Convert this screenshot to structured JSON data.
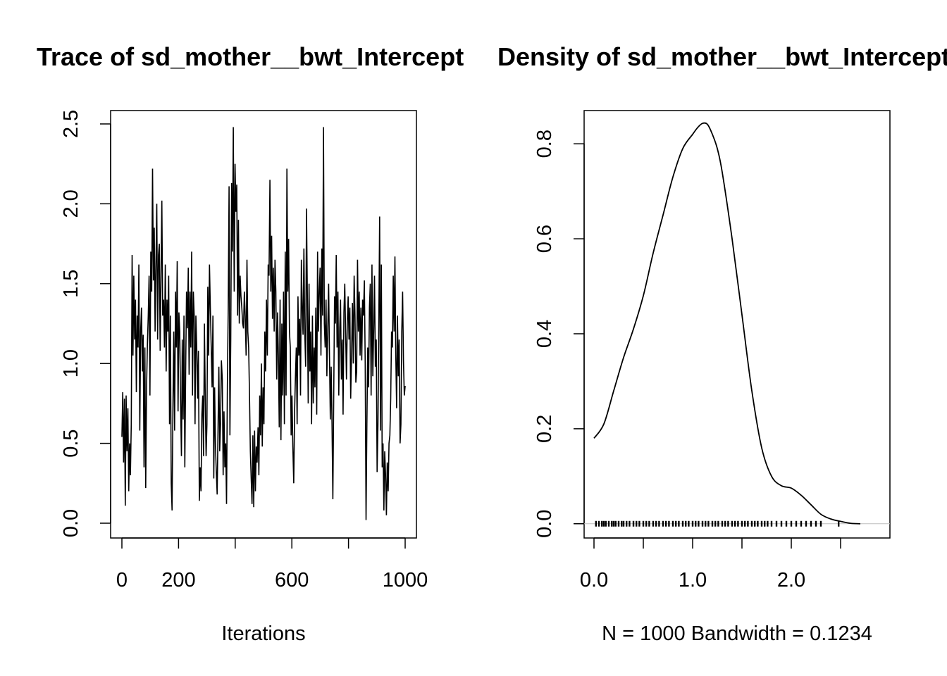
{
  "chart_data": [
    {
      "type": "line",
      "title": "Trace of sd_mother__bwt_Intercept",
      "xlabel": "Iterations",
      "ylabel": "",
      "xlim": [
        0,
        1000
      ],
      "ylim": [
        0,
        2.5
      ],
      "x_ticks": [
        0,
        200,
        400,
        600,
        800,
        1000
      ],
      "x_tick_labels": [
        "0",
        "200",
        "",
        "600",
        "",
        "1000"
      ],
      "y_ticks": [
        0,
        0.5,
        1,
        1.5,
        2,
        2.5
      ],
      "y_tick_labels": [
        "0.0",
        "0.5",
        "1.0",
        "1.5",
        "2.0",
        "2.5"
      ],
      "series": [
        {
          "values": [
            0.54,
            0.82,
            0.38,
            0.78,
            0.11,
            0.8,
            0.45,
            0.72,
            0.2,
            0.5,
            0.3,
            0.62,
            1.68,
            1.05,
            1.55,
            1.15,
            1.4,
            0.82,
            1.3,
            1.1,
            1.62,
            0.58,
            1.2,
            1.35,
            0.95,
            1.18,
            0.35,
            1.1,
            0.22,
            0.85,
            1.12,
            1.3,
            1.55,
            0.8,
            1.7,
            1.45,
            2.22,
            1.52,
            1.85,
            1.2,
            1.62,
            2.0,
            1.15,
            1.68,
            1.75,
            1.08,
            1.55,
            2.02,
            1.3,
            1.4,
            1.1,
            1.62,
            0.95,
            1.4,
            1.2,
            1.55,
            0.62,
            1.3,
            0.25,
            0.08,
            0.72,
            1.2,
            0.58,
            1.45,
            1.1,
            1.64,
            0.7,
            1.32,
            1.2,
            0.75,
            0.42,
            1.15,
            0.65,
            1.3,
            0.35,
            0.95,
            1.45,
            1.22,
            1.6,
            0.93,
            1.45,
            1.1,
            1.7,
            0.8,
            1.45,
            1.3,
            0.62,
            1.3,
            1.1,
            0.78,
            1.08,
            0.14,
            0.35,
            0.2,
            0.68,
            0.8,
            0.42,
            1.25,
            0.8,
            0.42,
            0.62,
            1.48,
            1.05,
            1.62,
            1.35,
            1.1,
            0.85,
            1.3,
            0.28,
            0.85,
            0.48,
            0.32,
            0.18,
            0.58,
            0.98,
            0.45,
            0.62,
            1.02,
            0.9,
            0.3,
            0.7,
            0.35,
            0.5,
            0.12,
            0.86,
            1.35,
            2.11,
            0.55,
            1.15,
            2.13,
            1.7,
            2.48,
            1.45,
            2.25,
            1.95,
            2.12,
            1.3,
            1.9,
            1.25,
            1.55,
            1.42,
            1.35,
            1.25,
            1.22,
            1.45,
            1.3,
            1.05,
            1.65,
            1.2,
            1.1,
            0.8,
            0.45,
            0.28,
            0.12,
            0.55,
            0.1,
            0.58,
            0.2,
            0.48,
            0.38,
            0.6,
            0.3,
            0.8,
            0.55,
            1.0,
            0.48,
            0.85,
            0.62,
            1.2,
            0.95,
            1.4,
            1.05,
            1.62,
            1.55,
            2.15,
            1.45,
            1.8,
            1.28,
            1.6,
            1.2,
            1.65,
            1.45,
            0.9,
            1.32,
            1.05,
            0.6,
            1.4,
            0.52,
            1.25,
            0.8,
            1.45,
            0.62,
            1.7,
            0.8,
            2.22,
            1.45,
            1.78,
            1.2,
            1.1,
            0.55,
            0.8,
            0.48,
            0.25,
            0.7,
            0.92,
            1.1,
            0.62,
            1.42,
            1.05,
            1.28,
            0.8,
            1.65,
            1.35,
            1.18,
            1.72,
            1.2,
            0.98,
            1.97,
            1.42,
            0.75,
            1.5,
            0.95,
            1.2,
            0.62,
            1.3,
            0.75,
            1.1,
            0.85,
            1.35,
            0.68,
            1.7,
            1.2,
            1.45,
            1.6,
            1.05,
            1.72,
            1.3,
            2.48,
            1.25,
            1.1,
            1.4,
            0.92,
            1.2,
            1.5,
            1.05,
            0.65,
            0.98,
            0.62,
            0.15,
            0.78,
            1.42,
            1.25,
            1.68,
            1.1,
            1.45,
            0.8,
            1.2,
            1.4,
            0.9,
            1.15,
            0.68,
            1.32,
            1.5,
            1.2,
            0.9,
            1.25,
            1.42,
            1.15,
            1.35,
            0.78,
            1.05,
            1.38,
            1.0,
            1.55,
            1.3,
            0.88,
            0.95,
            1.65,
            1.2,
            1.45,
            1.05,
            1.35,
            1.02,
            1.4,
            1.3,
            1.52,
            1.0,
            0.02,
            0.62,
            1.1,
            0.85,
            1.35,
            1.5,
            0.8,
            1.62,
            0.92,
            1.2,
            1.55,
            0.98,
            1.15,
            0.32,
            0.62,
            1.25,
            1.92,
            0.58,
            1.62,
            0.35,
            0.5,
            0.08,
            0.45,
            0.3,
            0.05,
            0.38,
            0.2,
            0.5,
            0.55,
            0.78,
            1.2,
            1.1,
            1.55,
            1.2,
            1.67,
            1.05,
            0.72,
            1.3,
            0.92,
            1.15,
            0.5,
            0.62,
            1.2,
            1.45,
            1.02,
            0.8,
            0.86
          ]
        }
      ]
    },
    {
      "type": "area",
      "title": "Density of sd_mother__bwt_Intercept",
      "xlabel": "N = 1000   Bandwidth = 0.1234",
      "ylabel": "",
      "xlim": [
        -0.1,
        3.0
      ],
      "ylim": [
        -0.03,
        0.87
      ],
      "x_ticks": [
        0,
        0.5,
        1,
        1.5,
        2,
        2.5
      ],
      "x_tick_labels": [
        "0.0",
        "",
        "1.0",
        "",
        "2.0",
        ""
      ],
      "y_ticks": [
        0,
        0.2,
        0.4,
        0.6,
        0.8
      ],
      "y_tick_labels": [
        "0.0",
        "0.2",
        "0.4",
        "0.6",
        "0.8"
      ],
      "series": [
        {
          "x": [
            0.0,
            0.1,
            0.2,
            0.3,
            0.4,
            0.5,
            0.6,
            0.7,
            0.8,
            0.9,
            1.0,
            1.05,
            1.1,
            1.15,
            1.2,
            1.25,
            1.3,
            1.4,
            1.5,
            1.6,
            1.7,
            1.8,
            1.9,
            2.0,
            2.1,
            2.2,
            2.3,
            2.4,
            2.5,
            2.6,
            2.7
          ],
          "y": [
            0.18,
            0.21,
            0.28,
            0.35,
            0.41,
            0.48,
            0.57,
            0.65,
            0.73,
            0.79,
            0.82,
            0.834,
            0.843,
            0.841,
            0.82,
            0.79,
            0.74,
            0.6,
            0.44,
            0.28,
            0.16,
            0.1,
            0.08,
            0.075,
            0.06,
            0.04,
            0.02,
            0.01,
            0.005,
            0.001,
            0.0
          ]
        }
      ],
      "rug": [
        0.02,
        0.05,
        0.08,
        0.1,
        0.12,
        0.15,
        0.18,
        0.2,
        0.22,
        0.25,
        0.28,
        0.3,
        0.33,
        0.36,
        0.4,
        0.43,
        0.46,
        0.5,
        0.53,
        0.56,
        0.6,
        0.63,
        0.66,
        0.7,
        0.73,
        0.76,
        0.8,
        0.83,
        0.86,
        0.9,
        0.93,
        0.96,
        1.0,
        1.03,
        1.06,
        1.1,
        1.13,
        1.16,
        1.2,
        1.23,
        1.26,
        1.3,
        1.33,
        1.36,
        1.4,
        1.43,
        1.46,
        1.5,
        1.53,
        1.56,
        1.6,
        1.63,
        1.66,
        1.7,
        1.73,
        1.76,
        1.8,
        1.85,
        1.9,
        1.95,
        2.0,
        2.05,
        2.1,
        2.15,
        2.2,
        2.25,
        2.3,
        2.48
      ]
    }
  ]
}
